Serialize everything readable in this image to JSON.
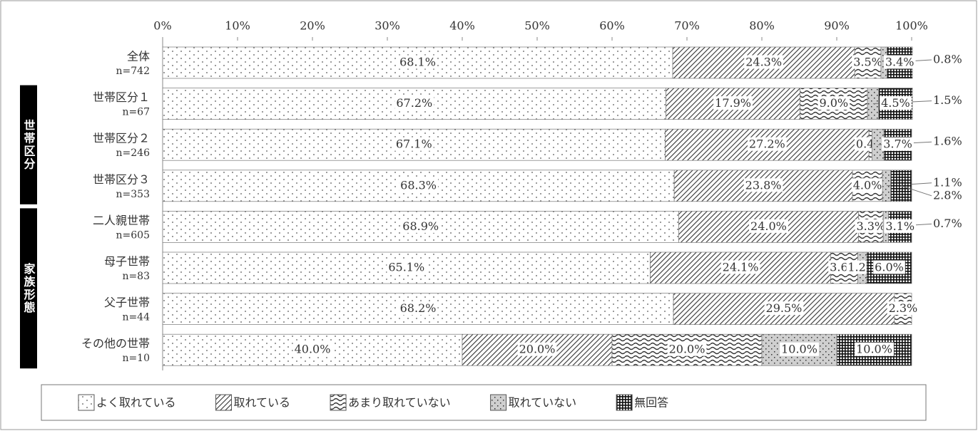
{
  "chart_data": {
    "type": "stacked_bar_horizontal",
    "categories": [
      "全体",
      "世帯区分１",
      "世帯区分２",
      "世帯区分３",
      "二人親世帯",
      "母子世帯",
      "父子世帯",
      "その他の世帯"
    ],
    "category_sublabels": [
      "n=742",
      "n=67",
      "n=246",
      "n=353",
      "n=605",
      "n=83",
      "n=44",
      "n=10"
    ],
    "groups": [
      {
        "label": "世帯区分",
        "categories": [
          "世帯区分１",
          "世帯区分２",
          "世帯区分３"
        ]
      },
      {
        "label": "家族形態",
        "categories": [
          "二人親世帯",
          "母子世帯",
          "父子世帯",
          "その他の世帯"
        ]
      }
    ],
    "series": [
      {
        "name": "よく取れている",
        "pattern": "dots",
        "color": "#555555",
        "values": [
          68.1,
          67.2,
          67.1,
          68.3,
          68.9,
          65.1,
          68.2,
          40.0
        ],
        "value_labels": [
          "68.1%",
          "67.2%",
          "67.1%",
          "68.3%",
          "68.9%",
          "65.1%",
          "68.2%",
          "40.0%"
        ]
      },
      {
        "name": "取れている",
        "pattern": "hatch",
        "color": "#444444",
        "values": [
          24.3,
          17.9,
          27.2,
          23.8,
          24.0,
          24.1,
          29.5,
          20.0
        ],
        "value_labels": [
          "24.3%",
          "17.9%",
          "27.2%",
          "23.8%",
          "24.0%",
          "24.1%",
          "29.5%",
          "20.0%"
        ]
      },
      {
        "name": "あまり取れていない",
        "pattern": "wave",
        "color": "#444444",
        "values": [
          3.5,
          9.0,
          0.4,
          4.0,
          3.3,
          3.6,
          2.3,
          20.0
        ],
        "value_labels": [
          "3.5%",
          "9.0%",
          "0.4%",
          "4.0%",
          "3.3%",
          "3.6%",
          "2.3%",
          "20.0%"
        ]
      },
      {
        "name": "取れていない",
        "pattern": "speckle",
        "color": "#666666",
        "values": [
          0.8,
          1.5,
          1.6,
          1.1,
          0.7,
          1.2,
          null,
          10.0
        ],
        "value_labels": [
          "0.8%",
          "1.5%",
          "1.6%",
          "1.1%",
          "0.7%",
          "1.2%",
          null,
          "10.0%"
        ]
      },
      {
        "name": "無回答",
        "pattern": "grid",
        "color": "#222222",
        "values": [
          3.4,
          4.5,
          3.7,
          2.8,
          3.1,
          6.0,
          null,
          10.0
        ],
        "value_labels": [
          "3.4%",
          "4.5%",
          "3.7%",
          "2.8%",
          "3.1%",
          "6.0%",
          null,
          "10.0%"
        ]
      }
    ],
    "xlim": [
      0,
      100
    ],
    "xticks": [
      {
        "value": 0,
        "label": "0%"
      },
      {
        "value": 10,
        "label": "10%"
      },
      {
        "value": 20,
        "label": "20%"
      },
      {
        "value": 30,
        "label": "30%"
      },
      {
        "value": 40,
        "label": "40%"
      },
      {
        "value": 50,
        "label": "50%"
      },
      {
        "value": 60,
        "label": "60%"
      },
      {
        "value": 70,
        "label": "70%"
      },
      {
        "value": 80,
        "label": "80%"
      },
      {
        "value": 90,
        "label": "90%"
      },
      {
        "value": 100,
        "label": "100%"
      }
    ],
    "legend": "bottom"
  }
}
